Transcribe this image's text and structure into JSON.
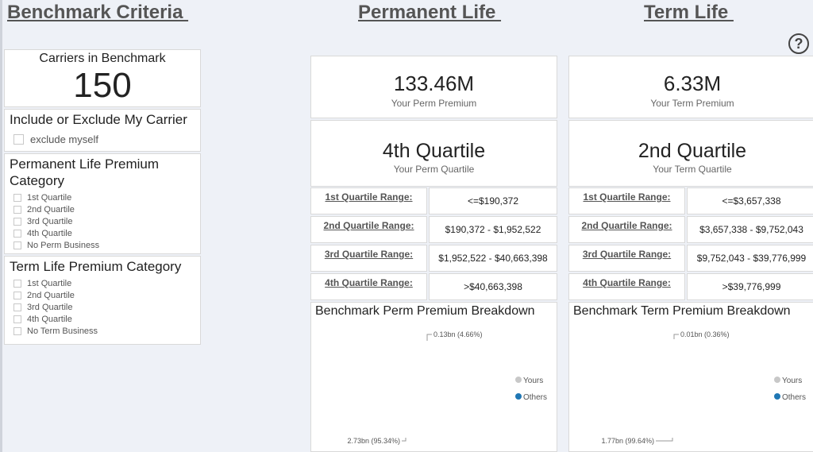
{
  "headers": {
    "criteria": "Benchmark Criteria ",
    "perm": "Permanent Life ",
    "term": "Term Life "
  },
  "help_icon": "?",
  "carriers": {
    "title": "Carriers in Benchmark",
    "count": "150"
  },
  "include_exclude": {
    "title": "Include or Exclude My Carrier",
    "option": "exclude myself"
  },
  "perm_category": {
    "title": "Permanent Life Premium Category",
    "options": [
      "1st Quartile",
      "2nd Quartile",
      "3rd Quartile",
      "4th Quartile",
      "No Perm Business"
    ]
  },
  "term_category": {
    "title": "Term Life Premium Category",
    "options": [
      "1st Quartile",
      "2nd Quartile",
      "3rd Quartile",
      "4th Quartile",
      "No Term Business"
    ]
  },
  "perm": {
    "premium_value": "133.46M",
    "premium_label": "Your Perm Premium",
    "quartile_value": "4th Quartile",
    "quartile_label": "Your Perm Quartile",
    "ranges": [
      {
        "label": "1st Quartile Range:",
        "value": "<=$190,372"
      },
      {
        "label": "2nd Quartile Range:",
        "value": "$190,372 - $1,952,522"
      },
      {
        "label": "3rd Quartile Range:",
        "value": "$1,952,522 - $40,663,398"
      },
      {
        "label": "4th Quartile Range:",
        "value": ">$40,663,398"
      }
    ],
    "breakdown_title": "Benchmark Perm Premium Breakdown",
    "yours_label": "0.13bn (4.66%)",
    "others_label": "2.73bn (95.34%)"
  },
  "term": {
    "premium_value": "6.33M",
    "premium_label": "Your Term Premium",
    "quartile_value": "2nd Quartile",
    "quartile_label": "Your Term Quartile",
    "ranges": [
      {
        "label": "1st Quartile Range:",
        "value": "<=$3,657,338"
      },
      {
        "label": "2nd Quartile Range:",
        "value": "$3,657,338 - $9,752,043"
      },
      {
        "label": "3rd Quartile Range:",
        "value": "$9,752,043 - $39,776,999"
      },
      {
        "label": "4th Quartile Range:",
        "value": ">$39,776,999"
      }
    ],
    "breakdown_title": "Benchmark Term Premium Breakdown",
    "yours_label": "0.01bn (0.36%)",
    "others_label": "1.77bn (99.64%)"
  },
  "legend": {
    "yours": "Yours",
    "others": "Others"
  },
  "colors": {
    "yours": "#c8c8c8",
    "others": "#1f77b4"
  },
  "chart_data": [
    {
      "type": "pie",
      "title": "Benchmark Perm Premium Breakdown",
      "categories": [
        "Yours",
        "Others"
      ],
      "values": [
        0.13,
        2.73
      ],
      "percent": [
        4.66,
        95.34
      ],
      "unit": "bn",
      "legend": "right"
    },
    {
      "type": "pie",
      "title": "Benchmark Term Premium Breakdown",
      "categories": [
        "Yours",
        "Others"
      ],
      "values": [
        0.01,
        1.77
      ],
      "percent": [
        0.36,
        99.64
      ],
      "unit": "bn",
      "legend": "right"
    }
  ]
}
